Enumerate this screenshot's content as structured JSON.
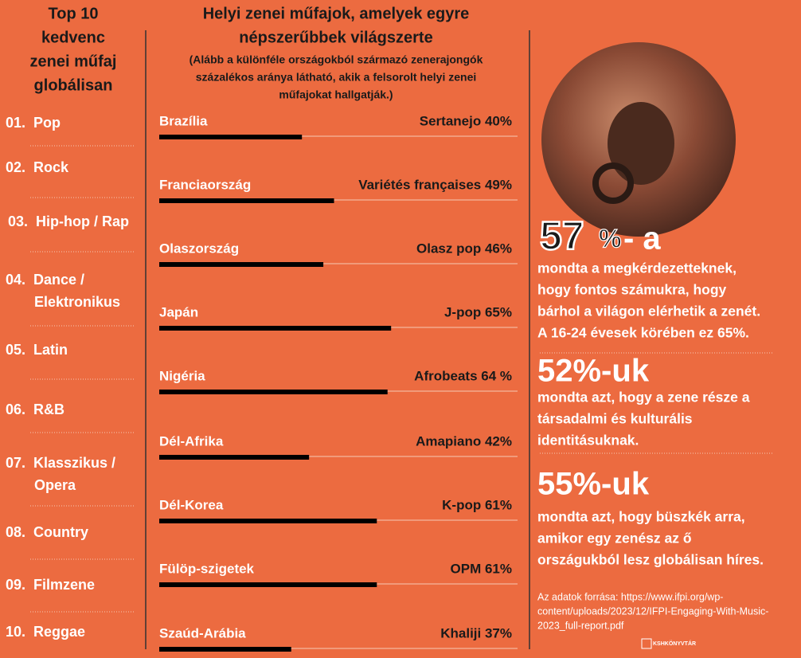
{
  "left_panel": {
    "title_lines": [
      "Top 10",
      "kedvenc",
      "zenei műfaj",
      "globálisan"
    ],
    "items": [
      {
        "rank": "01.",
        "name": [
          "Pop"
        ]
      },
      {
        "rank": "02.",
        "name": [
          "Rock"
        ]
      },
      {
        "rank": "03.",
        "name": [
          "Hip-hop / Rap"
        ]
      },
      {
        "rank": "04.",
        "name": [
          "Dance /",
          "Elektronikus"
        ]
      },
      {
        "rank": "05.",
        "name": [
          "Latin"
        ]
      },
      {
        "rank": "06.",
        "name": [
          "R&B"
        ]
      },
      {
        "rank": "07.",
        "name": [
          "Klasszikus /",
          "Opera"
        ]
      },
      {
        "rank": "08.",
        "name": [
          "Country"
        ]
      },
      {
        "rank": "09.",
        "name": [
          "Filmzene"
        ]
      },
      {
        "rank": "10.",
        "name": [
          "Reggae"
        ]
      }
    ]
  },
  "chart_data": {
    "type": "bar",
    "orientation": "horizontal",
    "title_lines": [
      "Helyi zenei műfajok, amelyek egyre",
      "népszerűbbek világszerte"
    ],
    "subtitle_lines": [
      "(Alább a különféle országokból származó  zenerajongók",
      "százalékos aránya látható, akik a felsorolt helyi zenei",
      "műfajokat hallgatják.)"
    ],
    "categories": [
      "Brazília",
      "Franciaország",
      "Olaszország",
      "Japán",
      "Nigéria",
      "Dél-Afrika",
      "Dél-Korea",
      "Fülöp-szigetek",
      "Szaúd-Arábia"
    ],
    "values": [
      40,
      49,
      46,
      65,
      64,
      42,
      61,
      61,
      37
    ],
    "value_labels": [
      "Sertanejo 40%",
      "Variétés françaises 49%",
      "Olasz pop 46%",
      "J-pop 65%",
      "Afrobeats 64 %",
      "Amapiano 42%",
      "K-pop 61%",
      "OPM 61%",
      "Khaliji 37%"
    ],
    "color": "#000000",
    "xlim": [
      0,
      100
    ]
  },
  "right_panel": {
    "stats": [
      {
        "figure": "57",
        "unit": "%",
        "suffix": "- a",
        "lines": [
          "mondta a megkérdezetteknek,",
          "hogy fontos számukra, hogy",
          "bárhol a világon elérhetik a zenét.",
          "A 16-24 évesek körében ez 65%."
        ]
      },
      {
        "figure": "52%-uk",
        "lines": [
          "mondta azt, hogy a zene része a",
          "társadalmi és kulturális",
          "identitásuknak."
        ]
      },
      {
        "figure": "55%-uk",
        "lines": [
          "mondta azt, hogy büszkék arra,",
          "amikor egy zenész az ő",
          "országukból lesz globálisan híres."
        ]
      }
    ],
    "source_lines": [
      "Az adatok forrása: https://www.ifpi.org/wp-",
      "content/uploads/2023/12/IFPI-Engaging-With-Music-",
      "2023_full-report.pdf"
    ],
    "logo": "KSHKÖNYVTÁR"
  }
}
